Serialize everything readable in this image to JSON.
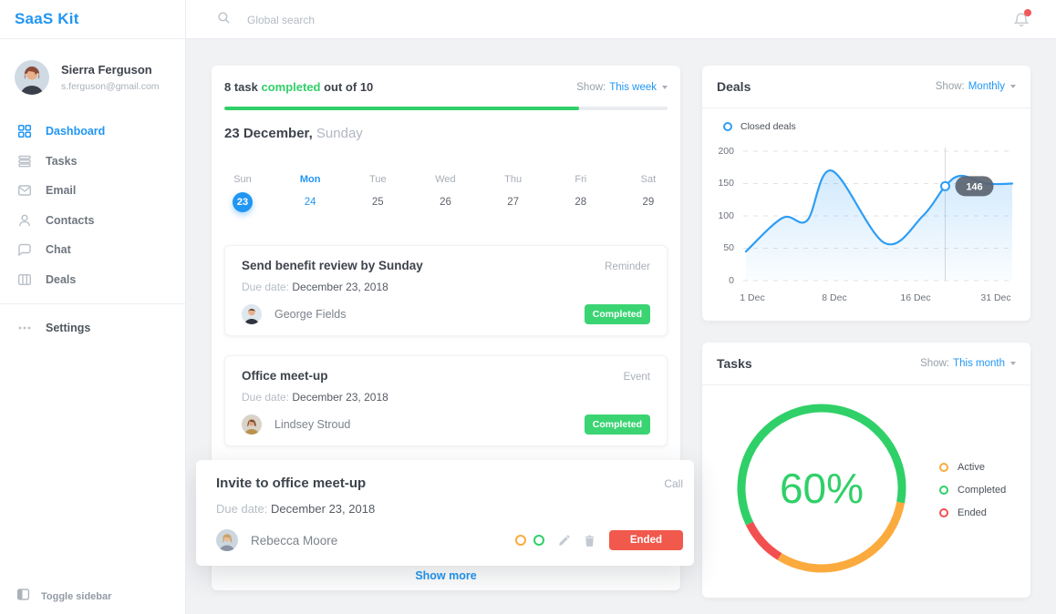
{
  "brand": "SaaS Kit",
  "topbar": {
    "search_placeholder": "Global search"
  },
  "sidebar": {
    "user": {
      "name": "Sierra Ferguson",
      "email": "s.ferguson@gmail.com"
    },
    "items": [
      {
        "label": "Dashboard"
      },
      {
        "label": "Tasks"
      },
      {
        "label": "Email"
      },
      {
        "label": "Contacts"
      },
      {
        "label": "Chat"
      },
      {
        "label": "Deals"
      }
    ],
    "settings": "Settings",
    "toggle": "Toggle sidebar"
  },
  "tasks_panel": {
    "summary_prefix": "8 task ",
    "summary_highlight": "completed",
    "summary_suffix": " out of 10",
    "show_label": "Show:",
    "show_value": "This week",
    "progress_pct": 80,
    "date_main": "23 December,",
    "date_sub": "Sunday",
    "week": [
      {
        "day": "Sun",
        "num": "23"
      },
      {
        "day": "Mon",
        "num": "24"
      },
      {
        "day": "Tue",
        "num": "25"
      },
      {
        "day": "Wed",
        "num": "26"
      },
      {
        "day": "Thu",
        "num": "27"
      },
      {
        "day": "Fri",
        "num": "28"
      },
      {
        "day": "Sat",
        "num": "29"
      }
    ],
    "items": [
      {
        "title": "Send benefit review by Sunday",
        "type": "Reminder",
        "due_label": "Due date:",
        "due": "December 23, 2018",
        "assignee": "George Fields",
        "status": "Completed"
      },
      {
        "title": "Office meet-up",
        "type": "Event",
        "due_label": "Due date:",
        "due": "December 23, 2018",
        "assignee": "Lindsey Stroud",
        "status": "Completed"
      },
      {
        "title": "Invite to office meet-up",
        "type": "Call",
        "due_label": "Due date:",
        "due": "December 23, 2018",
        "assignee": "Rebecca Moore",
        "status": "Ended"
      }
    ],
    "show_more": "Show more"
  },
  "deals_panel": {
    "title": "Deals",
    "show_label": "Show:",
    "show_value": "Monthly",
    "legend": "Closed deals",
    "chart_data": {
      "type": "line",
      "series": [
        {
          "name": "Closed deals",
          "points": [
            [
              1,
              45
            ],
            [
              4,
              97
            ],
            [
              6,
              93
            ],
            [
              8,
              170
            ],
            [
              13,
              58
            ],
            [
              17,
              100
            ],
            [
              20.5,
              146
            ],
            [
              23,
              162
            ],
            [
              27,
              150
            ],
            [
              31,
              150
            ]
          ]
        }
      ],
      "highlight": {
        "x": 20.5,
        "value": 146
      },
      "yticks": [
        "200",
        "150",
        "100",
        "50",
        "0"
      ],
      "xticks": [
        "1 Dec",
        "8 Dec",
        "16 Dec",
        "31 Dec"
      ],
      "ylim": [
        0,
        200
      ],
      "grid": "dashed",
      "color": "#2e9df4"
    }
  },
  "donut_panel": {
    "title": "Tasks",
    "show_label": "Show:",
    "show_value": "This month",
    "center_label": "60%",
    "legend": [
      {
        "label": "Active",
        "color": "#fbab3d"
      },
      {
        "label": "Completed",
        "color": "#30d068"
      },
      {
        "label": "Ended",
        "color": "#f25050"
      }
    ],
    "chart_data": {
      "type": "donut",
      "start_deg": 100,
      "segments": [
        {
          "label": "Active",
          "pct": 31,
          "color": "#fbab3d"
        },
        {
          "label": "Ended",
          "pct": 9,
          "color": "#f25050"
        },
        {
          "label": "Completed",
          "pct": 60,
          "color": "#30d068"
        }
      ]
    }
  }
}
